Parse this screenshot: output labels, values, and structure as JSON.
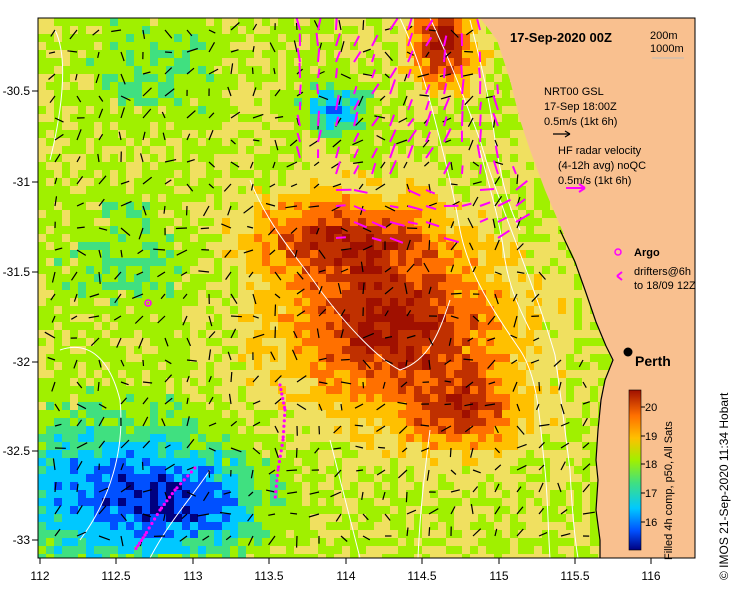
{
  "title": "17-Sep-2020 00Z",
  "contours": [
    "200m",
    "1000m"
  ],
  "legend": {
    "gsl": [
      "NRT00 GSL",
      "17-Sep 18:00Z",
      "0.5m/s (1kt 6h)"
    ],
    "hf": [
      "HF radar velocity",
      "(4-12h avg) noQC",
      "0.5m/s (1kt 6h)"
    ],
    "argo": "Argo",
    "drifters": [
      "drifters@6h",
      "to 18/09 12Z"
    ]
  },
  "city": "Perth",
  "colorbar": {
    "ticks": [
      "20",
      "19",
      "18",
      "17",
      "16"
    ],
    "label": "Filled 4h comp, p50, All Sats"
  },
  "credit": "© IMOS 21-Sep-2020 11:34 Hobart",
  "axes": {
    "x_ticks": [
      "112",
      "112.5",
      "113",
      "113.5",
      "114",
      "114.5",
      "115",
      "115.5",
      "116"
    ],
    "y_ticks": [
      "-30.5",
      "-31",
      "-31.5",
      "-32",
      "-32.5",
      "-33"
    ]
  },
  "colors": {
    "land": "#f9c08f",
    "hf_arrow": "#ff00ff",
    "gsl_arrow": "#000000",
    "contour": "#ffffff"
  }
}
